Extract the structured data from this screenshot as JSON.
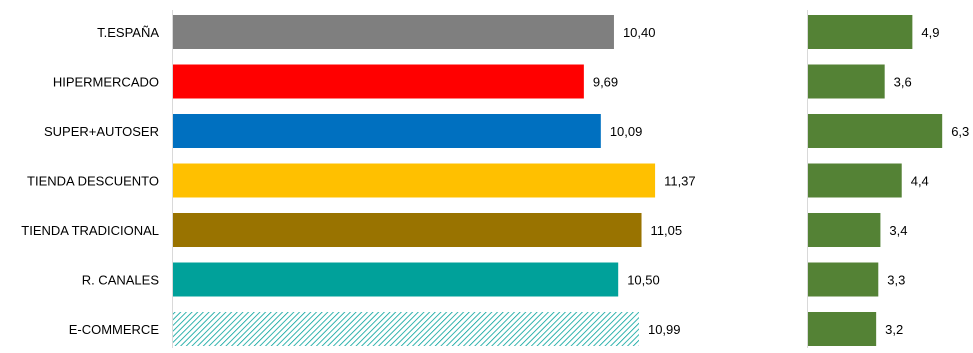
{
  "chart_data": [
    {
      "type": "bar",
      "orientation": "horizontal",
      "categories": [
        "T.ESPAÑA",
        "HIPERMERCADO",
        "SUPER+AUTOSER",
        "TIENDA DESCUENTO",
        "TIENDA TRADICIONAL",
        "R. CANALES",
        "E-COMMERCE"
      ],
      "values": [
        10.4,
        9.69,
        10.09,
        11.37,
        11.05,
        10.5,
        10.99
      ],
      "labels": [
        "10,40",
        "9,69",
        "10,09",
        "11,37",
        "11,05",
        "10,50",
        "10,99"
      ],
      "colors": [
        "#7f7f7f",
        "#ff0000",
        "#0070c0",
        "#ffc000",
        "#997300",
        "#00a19a",
        "#00a19a"
      ],
      "patterns": [
        "solid",
        "solid",
        "solid",
        "solid",
        "solid",
        "solid",
        "hatched"
      ],
      "xlim": [
        0,
        12
      ],
      "grid": false,
      "legend": "none"
    },
    {
      "type": "bar",
      "orientation": "horizontal",
      "categories": [
        "T.ESPAÑA",
        "HIPERMERCADO",
        "SUPER+AUTOSER",
        "TIENDA DESCUENTO",
        "TIENDA TRADICIONAL",
        "R. CANALES",
        "E-COMMERCE"
      ],
      "values": [
        4.9,
        3.6,
        6.3,
        4.4,
        3.4,
        3.3,
        3.2
      ],
      "labels": [
        "4,9",
        "3,6",
        "6,3",
        "4,4",
        "3,4",
        "3,3",
        "3,2"
      ],
      "color": "#548235",
      "xlim": [
        0,
        12
      ],
      "grid": false,
      "legend": "none"
    }
  ]
}
